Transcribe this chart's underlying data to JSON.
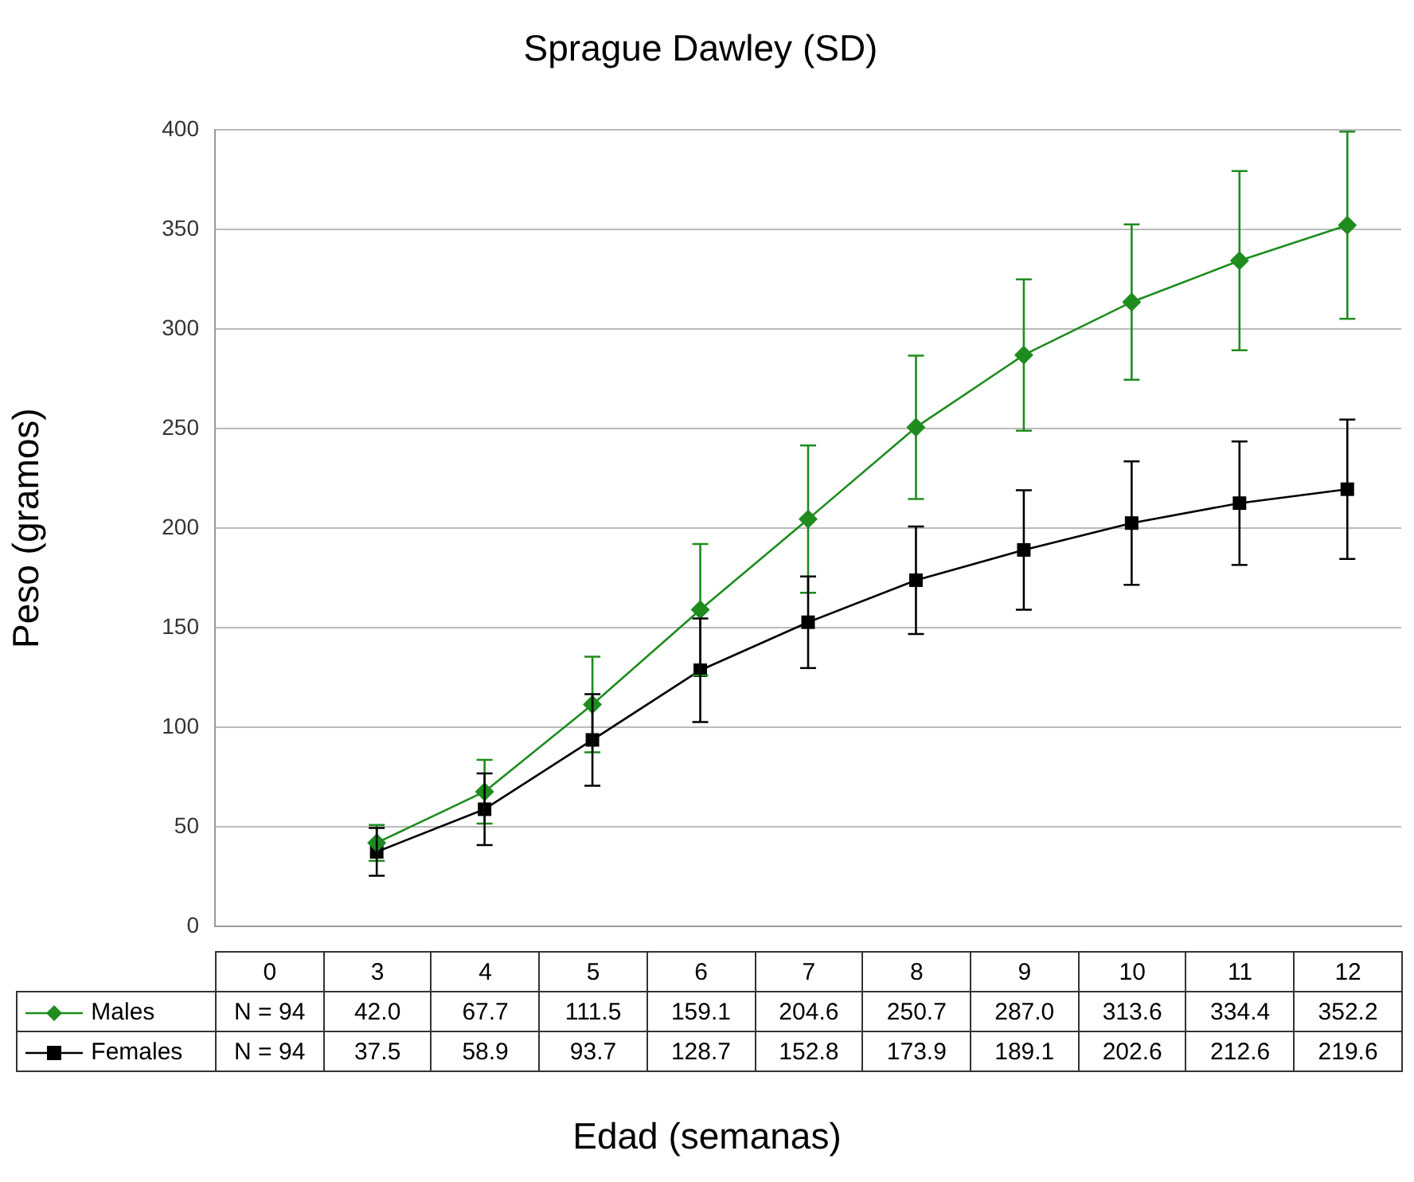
{
  "chart_data": {
    "type": "line",
    "title": "Sprague Dawley (SD)",
    "xlabel": "Edad (semanas)",
    "ylabel": "Peso (gramos)",
    "categories": [
      "0",
      "3",
      "4",
      "5",
      "6",
      "7",
      "8",
      "9",
      "10",
      "11",
      "12"
    ],
    "series": [
      {
        "name": "Males",
        "color": "#1e8c1e",
        "marker": "diamond",
        "values": [
          null,
          42.0,
          67.7,
          111.5,
          159.1,
          204.6,
          250.7,
          287.0,
          313.6,
          334.4,
          352.2
        ],
        "value_labels": [
          "N = 94",
          "42.0",
          "67.7",
          "111.5",
          "159.1",
          "204.6",
          "250.7",
          "287.0",
          "313.6",
          "334.4",
          "352.2"
        ],
        "errors": [
          null,
          9,
          16,
          24,
          33,
          37,
          36,
          38,
          39,
          45,
          47
        ]
      },
      {
        "name": "Females",
        "color": "#000000",
        "marker": "square",
        "values": [
          null,
          37.5,
          58.9,
          93.7,
          128.7,
          152.8,
          173.9,
          189.1,
          202.6,
          212.6,
          219.6
        ],
        "value_labels": [
          "N = 94",
          "37.5",
          "58.9",
          "93.7",
          "128.7",
          "152.8",
          "173.9",
          "189.1",
          "202.6",
          "212.6",
          "219.6"
        ],
        "errors": [
          null,
          12,
          18,
          23,
          26,
          23,
          27,
          30,
          31,
          31,
          35
        ]
      }
    ],
    "ylim": [
      0,
      400
    ],
    "yticks": [
      0,
      50,
      100,
      150,
      200,
      250,
      300,
      350,
      400
    ],
    "grid": "y",
    "legend": "bottom",
    "line_style": "solid"
  }
}
